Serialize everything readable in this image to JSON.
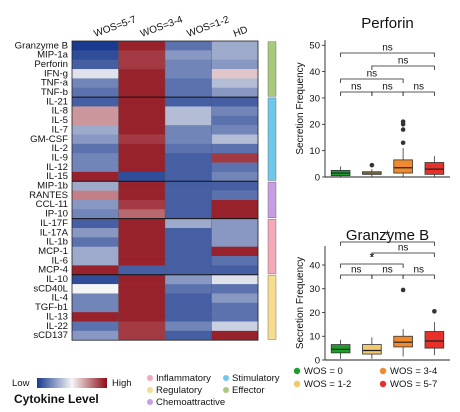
{
  "chart_data": [
    {
      "type": "heatmap",
      "title": "",
      "columns": [
        "WOS=5-7",
        "WOS=3-4",
        "WOS=1-2",
        "HD"
      ],
      "rows": [
        {
          "name": "Granzyme B",
          "group": "effector",
          "values": [
            0.0,
            0.95,
            0.15,
            0.3
          ]
        },
        {
          "name": "MIP-1a",
          "group": "effector",
          "values": [
            0.05,
            0.9,
            0.25,
            0.3
          ]
        },
        {
          "name": "Perforin",
          "group": "effector",
          "values": [
            0.1,
            0.9,
            0.2,
            0.25
          ]
        },
        {
          "name": "IFN-g",
          "group": "effector",
          "values": [
            0.45,
            0.95,
            0.2,
            0.6
          ]
        },
        {
          "name": "TNF-a",
          "group": "effector",
          "values": [
            0.2,
            0.95,
            0.15,
            0.35
          ]
        },
        {
          "name": "TNF-b",
          "group": "effector",
          "values": [
            0.15,
            0.95,
            0.15,
            0.25
          ]
        },
        {
          "name": "IL-21",
          "group": "stimulatory",
          "values": [
            0.1,
            0.95,
            0.1,
            0.1
          ]
        },
        {
          "name": "IL-8",
          "group": "stimulatory",
          "values": [
            0.7,
            0.95,
            0.35,
            0.2
          ]
        },
        {
          "name": "IL-5",
          "group": "stimulatory",
          "values": [
            0.7,
            0.95,
            0.35,
            0.15
          ]
        },
        {
          "name": "IL-7",
          "group": "stimulatory",
          "values": [
            0.3,
            0.95,
            0.2,
            0.2
          ]
        },
        {
          "name": "GM-CSF",
          "group": "stimulatory",
          "values": [
            0.25,
            0.9,
            0.2,
            0.35
          ]
        },
        {
          "name": "IL-2",
          "group": "stimulatory",
          "values": [
            0.15,
            0.95,
            0.15,
            0.15
          ]
        },
        {
          "name": "IL-9",
          "group": "stimulatory",
          "values": [
            0.2,
            0.95,
            0.1,
            0.9
          ]
        },
        {
          "name": "IL-12",
          "group": "stimulatory",
          "values": [
            0.2,
            0.95,
            0.1,
            0.15
          ]
        },
        {
          "name": "IL-15",
          "group": "stimulatory",
          "values": [
            0.95,
            0.05,
            0.1,
            0.2
          ]
        },
        {
          "name": "MIP-1b",
          "group": "chemoattractive",
          "values": [
            0.3,
            0.95,
            0.1,
            0.1
          ]
        },
        {
          "name": "RANTES",
          "group": "chemoattractive",
          "values": [
            0.75,
            0.95,
            0.1,
            0.15
          ]
        },
        {
          "name": "CCL-11",
          "group": "chemoattractive",
          "values": [
            0.25,
            0.9,
            0.1,
            0.95
          ]
        },
        {
          "name": "IP-10",
          "group": "chemoattractive",
          "values": [
            0.2,
            0.8,
            0.1,
            0.95
          ]
        },
        {
          "name": "IL-17F",
          "group": "inflammatory",
          "values": [
            0.1,
            0.95,
            0.3,
            0.25
          ]
        },
        {
          "name": "IL-17A",
          "group": "inflammatory",
          "values": [
            0.25,
            0.95,
            0.1,
            0.25
          ]
        },
        {
          "name": "IL-1b",
          "group": "inflammatory",
          "values": [
            0.15,
            0.95,
            0.1,
            0.25
          ]
        },
        {
          "name": "MCP-1",
          "group": "inflammatory",
          "values": [
            0.3,
            0.95,
            0.1,
            0.95
          ]
        },
        {
          "name": "IL-6",
          "group": "inflammatory",
          "values": [
            0.3,
            0.95,
            0.1,
            0.15
          ]
        },
        {
          "name": "MCP-4",
          "group": "inflammatory",
          "values": [
            0.95,
            0.1,
            0.1,
            0.1
          ]
        },
        {
          "name": "IL-10",
          "group": "regulatory",
          "values": [
            0.05,
            0.95,
            0.25,
            0.45
          ]
        },
        {
          "name": "sCD40L",
          "group": "regulatory",
          "values": [
            0.5,
            0.95,
            0.15,
            0.15
          ]
        },
        {
          "name": "IL-4",
          "group": "regulatory",
          "values": [
            0.2,
            0.95,
            0.1,
            0.25
          ]
        },
        {
          "name": "TGF-b1",
          "group": "regulatory",
          "values": [
            0.2,
            0.95,
            0.1,
            0.15
          ]
        },
        {
          "name": "IL-13",
          "group": "regulatory",
          "values": [
            0.95,
            0.95,
            0.1,
            0.15
          ]
        },
        {
          "name": "IL-22",
          "group": "regulatory",
          "values": [
            0.15,
            0.9,
            0.2,
            0.4
          ]
        },
        {
          "name": "sCD137",
          "group": "regulatory",
          "values": [
            0.25,
            0.9,
            0.1,
            0.95
          ]
        }
      ],
      "colorbar": {
        "low_label": "Low",
        "high_label": "High",
        "title": "Cytokine Level",
        "low_color": "#1a3a8f",
        "mid_color": "#f5f5f5",
        "high_color": "#8e0b16"
      },
      "groups": [
        {
          "key": "inflammatory",
          "label": "Inflammatory",
          "color": "#f3a9b7"
        },
        {
          "key": "stimulatory",
          "label": "Stimulatory",
          "color": "#6fc8ea"
        },
        {
          "key": "regulatory",
          "label": "Regulatory",
          "color": "#f7db8e"
        },
        {
          "key": "effector",
          "label": "Effector",
          "color": "#a9c97d"
        },
        {
          "key": "chemoattractive",
          "label": "Chemoattractive",
          "color": "#c79ee3"
        }
      ],
      "group_order": [
        "effector",
        "stimulatory",
        "chemoattractive",
        "inflammatory",
        "regulatory"
      ]
    },
    {
      "type": "box",
      "title": "Perforin",
      "ylabel": "Secretion Frequency",
      "ylim": [
        0,
        52
      ],
      "yticks": [
        0,
        10,
        20,
        30,
        40,
        50
      ],
      "boxes": [
        {
          "name": "WOS = 0",
          "color": "#1b9e2e",
          "whislo": 0,
          "q1": 0.5,
          "med": 1.5,
          "q3": 2.5,
          "whishi": 4,
          "fliers": []
        },
        {
          "name": "WOS = 1-2",
          "color": "#f2c96b",
          "whislo": 0.2,
          "q1": 1,
          "med": 1.5,
          "q3": 2,
          "whishi": 3,
          "fliers": [
            4.5
          ]
        },
        {
          "name": "WOS = 3-4",
          "color": "#f08a2e",
          "whislo": 0,
          "q1": 1.5,
          "med": 3.5,
          "q3": 6.5,
          "whishi": 11,
          "fliers": [
            13,
            18,
            20,
            21
          ]
        },
        {
          "name": "WOS = 5-7",
          "color": "#e8302a",
          "whislo": 0,
          "q1": 1,
          "med": 3,
          "q3": 5.5,
          "whishi": 8,
          "fliers": []
        }
      ],
      "brackets": [
        {
          "from": 0,
          "to": 1,
          "label": "ns"
        },
        {
          "from": 1,
          "to": 2,
          "label": "ns"
        },
        {
          "from": 2,
          "to": 3,
          "label": "ns"
        },
        {
          "from": 0,
          "to": 2,
          "label": "ns"
        },
        {
          "from": 1,
          "to": 3,
          "label": "ns"
        },
        {
          "from": 0,
          "to": 3,
          "label": "ns"
        }
      ]
    },
    {
      "type": "box",
      "title": "Granzyme B",
      "ylabel": "Secretion Frequency",
      "ylim": [
        0,
        48
      ],
      "yticks": [
        0,
        10,
        20,
        30,
        40
      ],
      "boxes": [
        {
          "name": "WOS = 0",
          "color": "#1b9e2e",
          "whislo": 0.5,
          "q1": 3,
          "med": 4.5,
          "q3": 6.5,
          "whishi": 8.5,
          "fliers": []
        },
        {
          "name": "WOS = 1-2",
          "color": "#f2c96b",
          "whislo": 0.5,
          "q1": 2.5,
          "med": 4,
          "q3": 6.5,
          "whishi": 9.5,
          "fliers": []
        },
        {
          "name": "WOS = 3-4",
          "color": "#f08a2e",
          "whislo": 1.5,
          "q1": 5.5,
          "med": 7.5,
          "q3": 10,
          "whishi": 13,
          "fliers": [
            29.5
          ]
        },
        {
          "name": "WOS = 5-7",
          "color": "#e8302a",
          "whislo": 2,
          "q1": 5,
          "med": 8,
          "q3": 12,
          "whishi": 16,
          "fliers": [
            20.5
          ]
        }
      ],
      "brackets": [
        {
          "from": 0,
          "to": 1,
          "label": "ns"
        },
        {
          "from": 1,
          "to": 2,
          "label": "ns"
        },
        {
          "from": 2,
          "to": 3,
          "label": "ns"
        },
        {
          "from": 0,
          "to": 2,
          "label": "*"
        },
        {
          "from": 1,
          "to": 3,
          "label": "ns"
        },
        {
          "from": 0,
          "to": 3,
          "label": "*"
        }
      ]
    }
  ],
  "box_legend": [
    {
      "label": "WOS = 0",
      "color": "#1b9e2e"
    },
    {
      "label": "WOS = 3-4",
      "color": "#f08a2e"
    },
    {
      "label": "WOS = 1-2",
      "color": "#f2c96b"
    },
    {
      "label": "WOS = 5-7",
      "color": "#e8302a"
    }
  ]
}
